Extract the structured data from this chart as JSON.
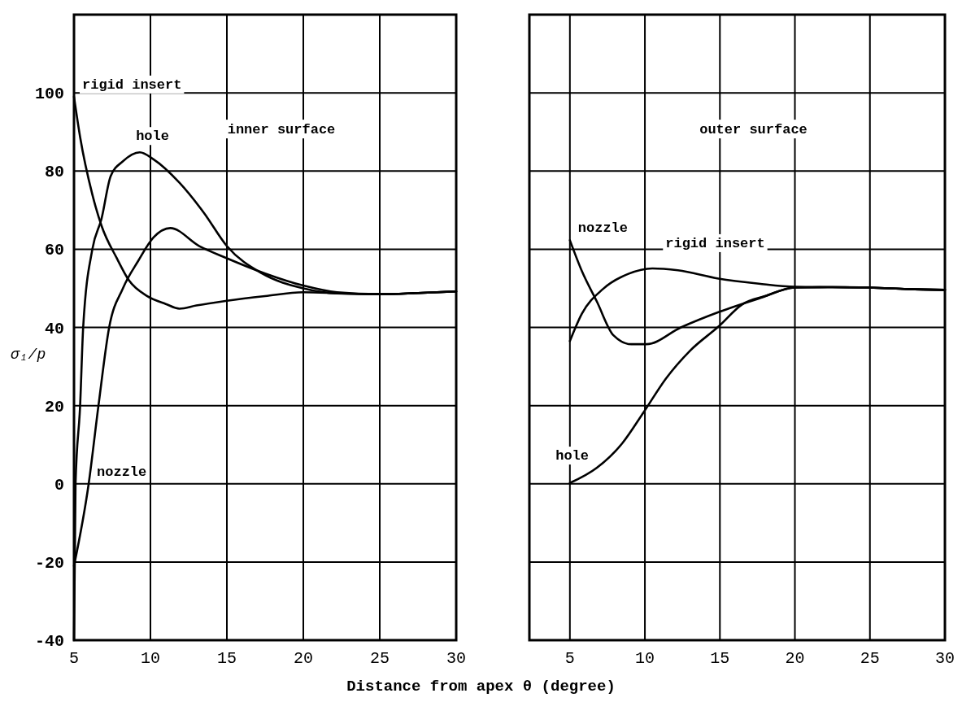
{
  "chart_data": [
    {
      "type": "line",
      "xlabel": "Distance from apex θ (degree)",
      "ylabel": "σ₁/p",
      "xlim": [
        5,
        30
      ],
      "ylim": [
        -40,
        120
      ],
      "xticks": [
        5,
        10,
        15,
        20,
        25,
        30
      ],
      "yticks": [
        -40,
        -20,
        0,
        20,
        40,
        60,
        80,
        100,
        {
          "value": 120,
          "label": null
        }
      ],
      "grid": true,
      "annotations": [
        "inner surface"
      ],
      "series": [
        {
          "name": "hole",
          "color": "#000000",
          "x": [
            5,
            5.1,
            5.4,
            5.6,
            6.2,
            6.8,
            7.4,
            8.2,
            9.3,
            10.2,
            11.9,
            13.5,
            15,
            17.3,
            20,
            22.2,
            25,
            27.5,
            30
          ],
          "values": [
            -40,
            0,
            20,
            40,
            60,
            67.8,
            78.7,
            82.5,
            84.8,
            83,
            77,
            69.3,
            60.8,
            53.8,
            50,
            48.7,
            48.5,
            48.8,
            49.2
          ]
        },
        {
          "name": "rigid insert",
          "color": "#000000",
          "x": [
            5,
            5.4,
            6.2,
            6.8,
            7.8,
            8.6,
            9.8,
            11,
            11.9,
            13,
            15,
            17.5,
            20,
            22.5,
            25,
            27.5,
            30
          ],
          "values": [
            99,
            88.7,
            74,
            66,
            57.7,
            52,
            48,
            46,
            44.8,
            45.6,
            46.8,
            48,
            49,
            48.7,
            48.5,
            48.8,
            49.2
          ]
        },
        {
          "name": "nozzle",
          "color": "#000000",
          "x": [
            5,
            5.96,
            6.6,
            7.3,
            8.2,
            9.2,
            10.2,
            11.3,
            13.2,
            15,
            17.5,
            20,
            22.2,
            25,
            27.5,
            30
          ],
          "values": [
            -21,
            0,
            20,
            40,
            50,
            57,
            63,
            65.4,
            60.8,
            57.7,
            53.8,
            50.7,
            49,
            48.5,
            48.8,
            49.2
          ]
        }
      ]
    },
    {
      "type": "line",
      "xlim": [
        2.3,
        30
      ],
      "ylim": [
        -40,
        120
      ],
      "xticks": [
        5,
        10,
        15,
        20,
        25,
        30
      ],
      "yticks": [
        -40,
        -20,
        0,
        20,
        40,
        60,
        80,
        100,
        {
          "value": 120,
          "label": null
        }
      ],
      "grid": true,
      "tick_labels": "x",
      "annotations": [
        "outer surface"
      ],
      "series": [
        {
          "name": "rigid insert",
          "color": "#000000",
          "x": [
            5,
            5.8,
            7.2,
            8.9,
            10.5,
            12.2,
            14.9,
            17.6,
            20,
            22.5,
            25,
            27.5,
            30
          ],
          "values": [
            36.5,
            43.5,
            49.8,
            53.7,
            55.1,
            54.6,
            52.5,
            51.2,
            50.4,
            50.3,
            50.2,
            49.8,
            49.6
          ]
        },
        {
          "name": "nozzle",
          "color": "#000000",
          "x": [
            5,
            5.8,
            6.8,
            7.9,
            9.1,
            10.1,
            12.4,
            14.9,
            17.6,
            20,
            22.5,
            25,
            27.5,
            30
          ],
          "values": [
            62.3,
            54.4,
            46.6,
            38,
            35.7,
            35.7,
            40,
            43.9,
            47.4,
            50.2,
            50.3,
            50.2,
            49.8,
            49.6
          ]
        },
        {
          "name": "hole",
          "color": "#000000",
          "x": [
            5,
            6.8,
            8.5,
            9.9,
            11.4,
            13,
            14.9,
            16.5,
            18,
            20,
            22.5,
            25,
            27.5,
            30
          ],
          "values": [
            0.2,
            4.1,
            10.4,
            18.2,
            26.9,
            34,
            40.2,
            45.9,
            48,
            50.2,
            50.3,
            50.2,
            49.8,
            49.6
          ]
        }
      ]
    }
  ]
}
